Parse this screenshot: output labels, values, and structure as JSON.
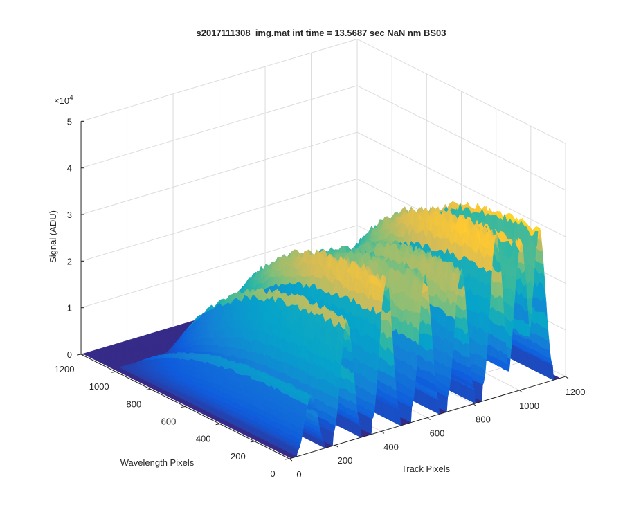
{
  "chart_data": {
    "type": "surface",
    "title": "s2017111308_img.mat int time = 13.5687 sec  NaN nm BS03",
    "xlabel": "Track Pixels",
    "ylabel": "Wavelength Pixels",
    "zlabel": "Signal (ADU)",
    "z_exponent_label": "×10",
    "z_exponent": "4",
    "xlim": [
      0,
      1200
    ],
    "ylim": [
      0,
      1200
    ],
    "zlim": [
      0,
      50000
    ],
    "x_ticks": [
      "0",
      "200",
      "400",
      "600",
      "800",
      "1000",
      "1200"
    ],
    "y_ticks": [
      "0",
      "200",
      "400",
      "600",
      "800",
      "1000",
      "1200"
    ],
    "z_ticks": [
      "0",
      "1",
      "2",
      "3",
      "4",
      "5"
    ],
    "grid": true,
    "colormap": "parula",
    "colors": [
      "#352a87",
      "#0f5cdd",
      "#1481d6",
      "#06a4ca",
      "#2eb7a4",
      "#87bf77",
      "#d1bb59",
      "#fec832",
      "#f9fb0e"
    ],
    "track_peaks": [
      {
        "track_center": 95,
        "peak_signal": 12500
      },
      {
        "track_center": 250,
        "peak_signal": 27000
      },
      {
        "track_center": 420,
        "peak_signal": 33500
      },
      {
        "track_center": 590,
        "peak_signal": 31500
      },
      {
        "track_center": 745,
        "peak_signal": 30500
      },
      {
        "track_center": 900,
        "peak_signal": 36000
      },
      {
        "track_center": 1005,
        "peak_signal": 32500
      },
      {
        "track_center": 1085,
        "peak_signal": 34000
      }
    ]
  }
}
